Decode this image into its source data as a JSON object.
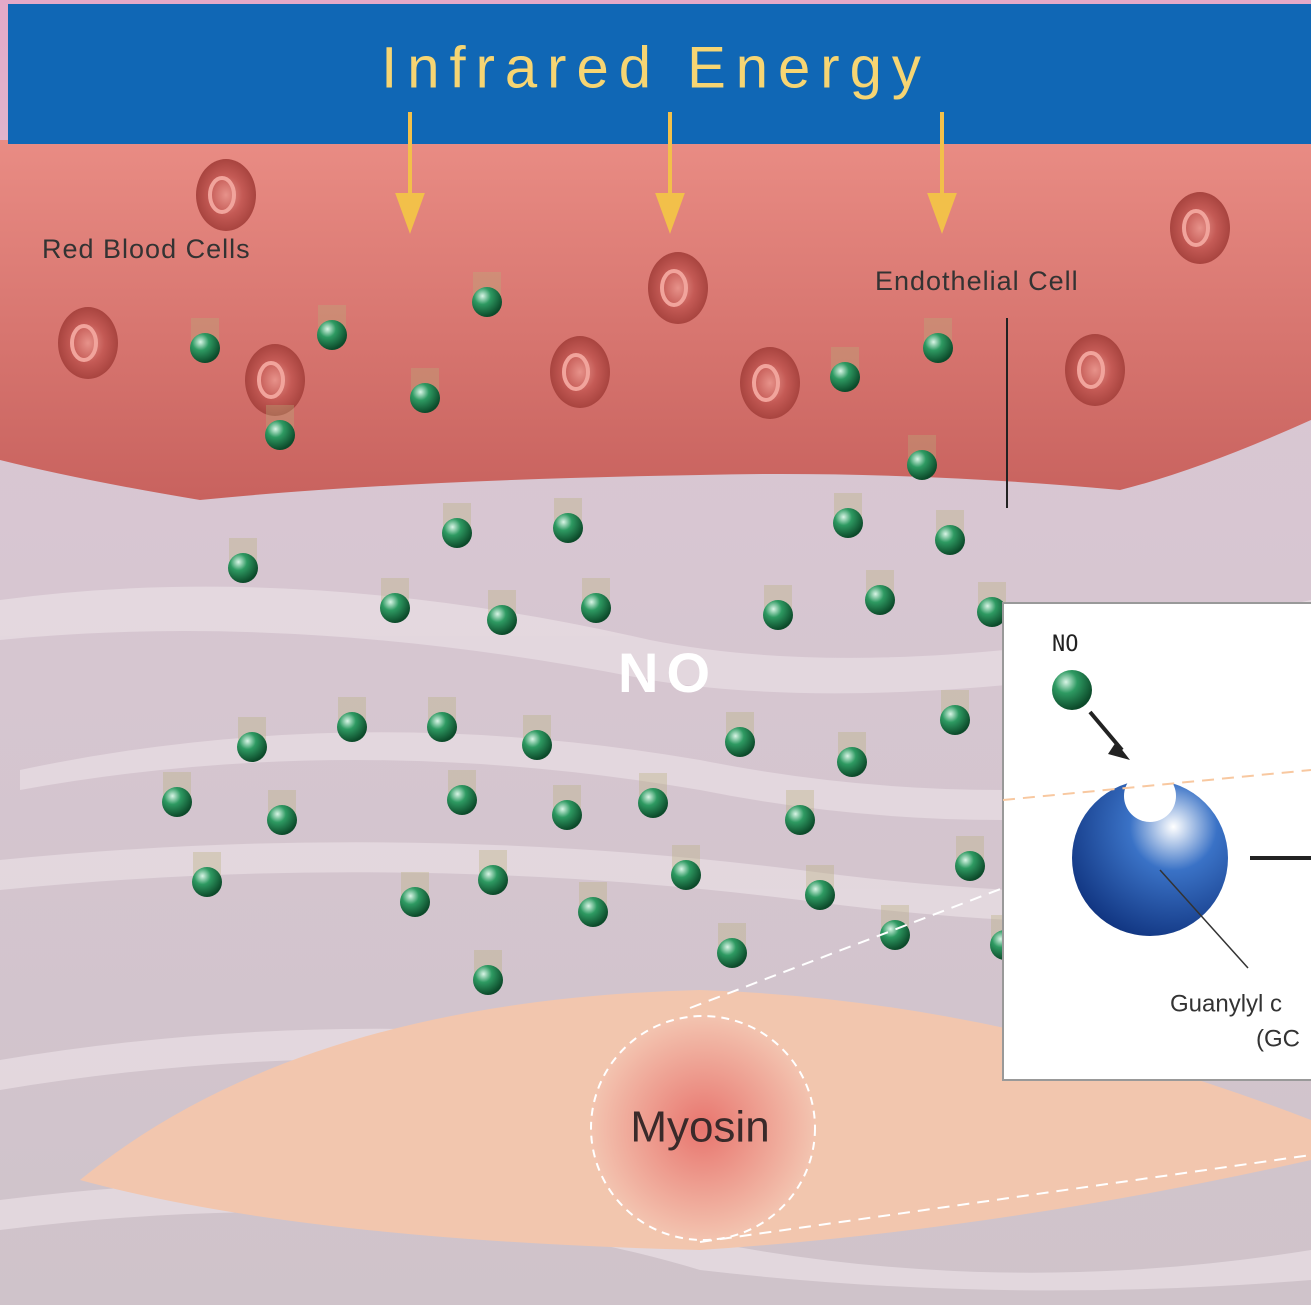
{
  "header": {
    "title": "Infrared Energy"
  },
  "labels": {
    "red_blood_cells": "Red Blood Cells",
    "endothelial_cell": "Endothelial Cell",
    "no": "NO",
    "myosin": "Myosin"
  },
  "inset": {
    "no": "NO",
    "enzyme_line_1": "Guanylyl c",
    "enzyme_line_2": "(GC"
  }
}
